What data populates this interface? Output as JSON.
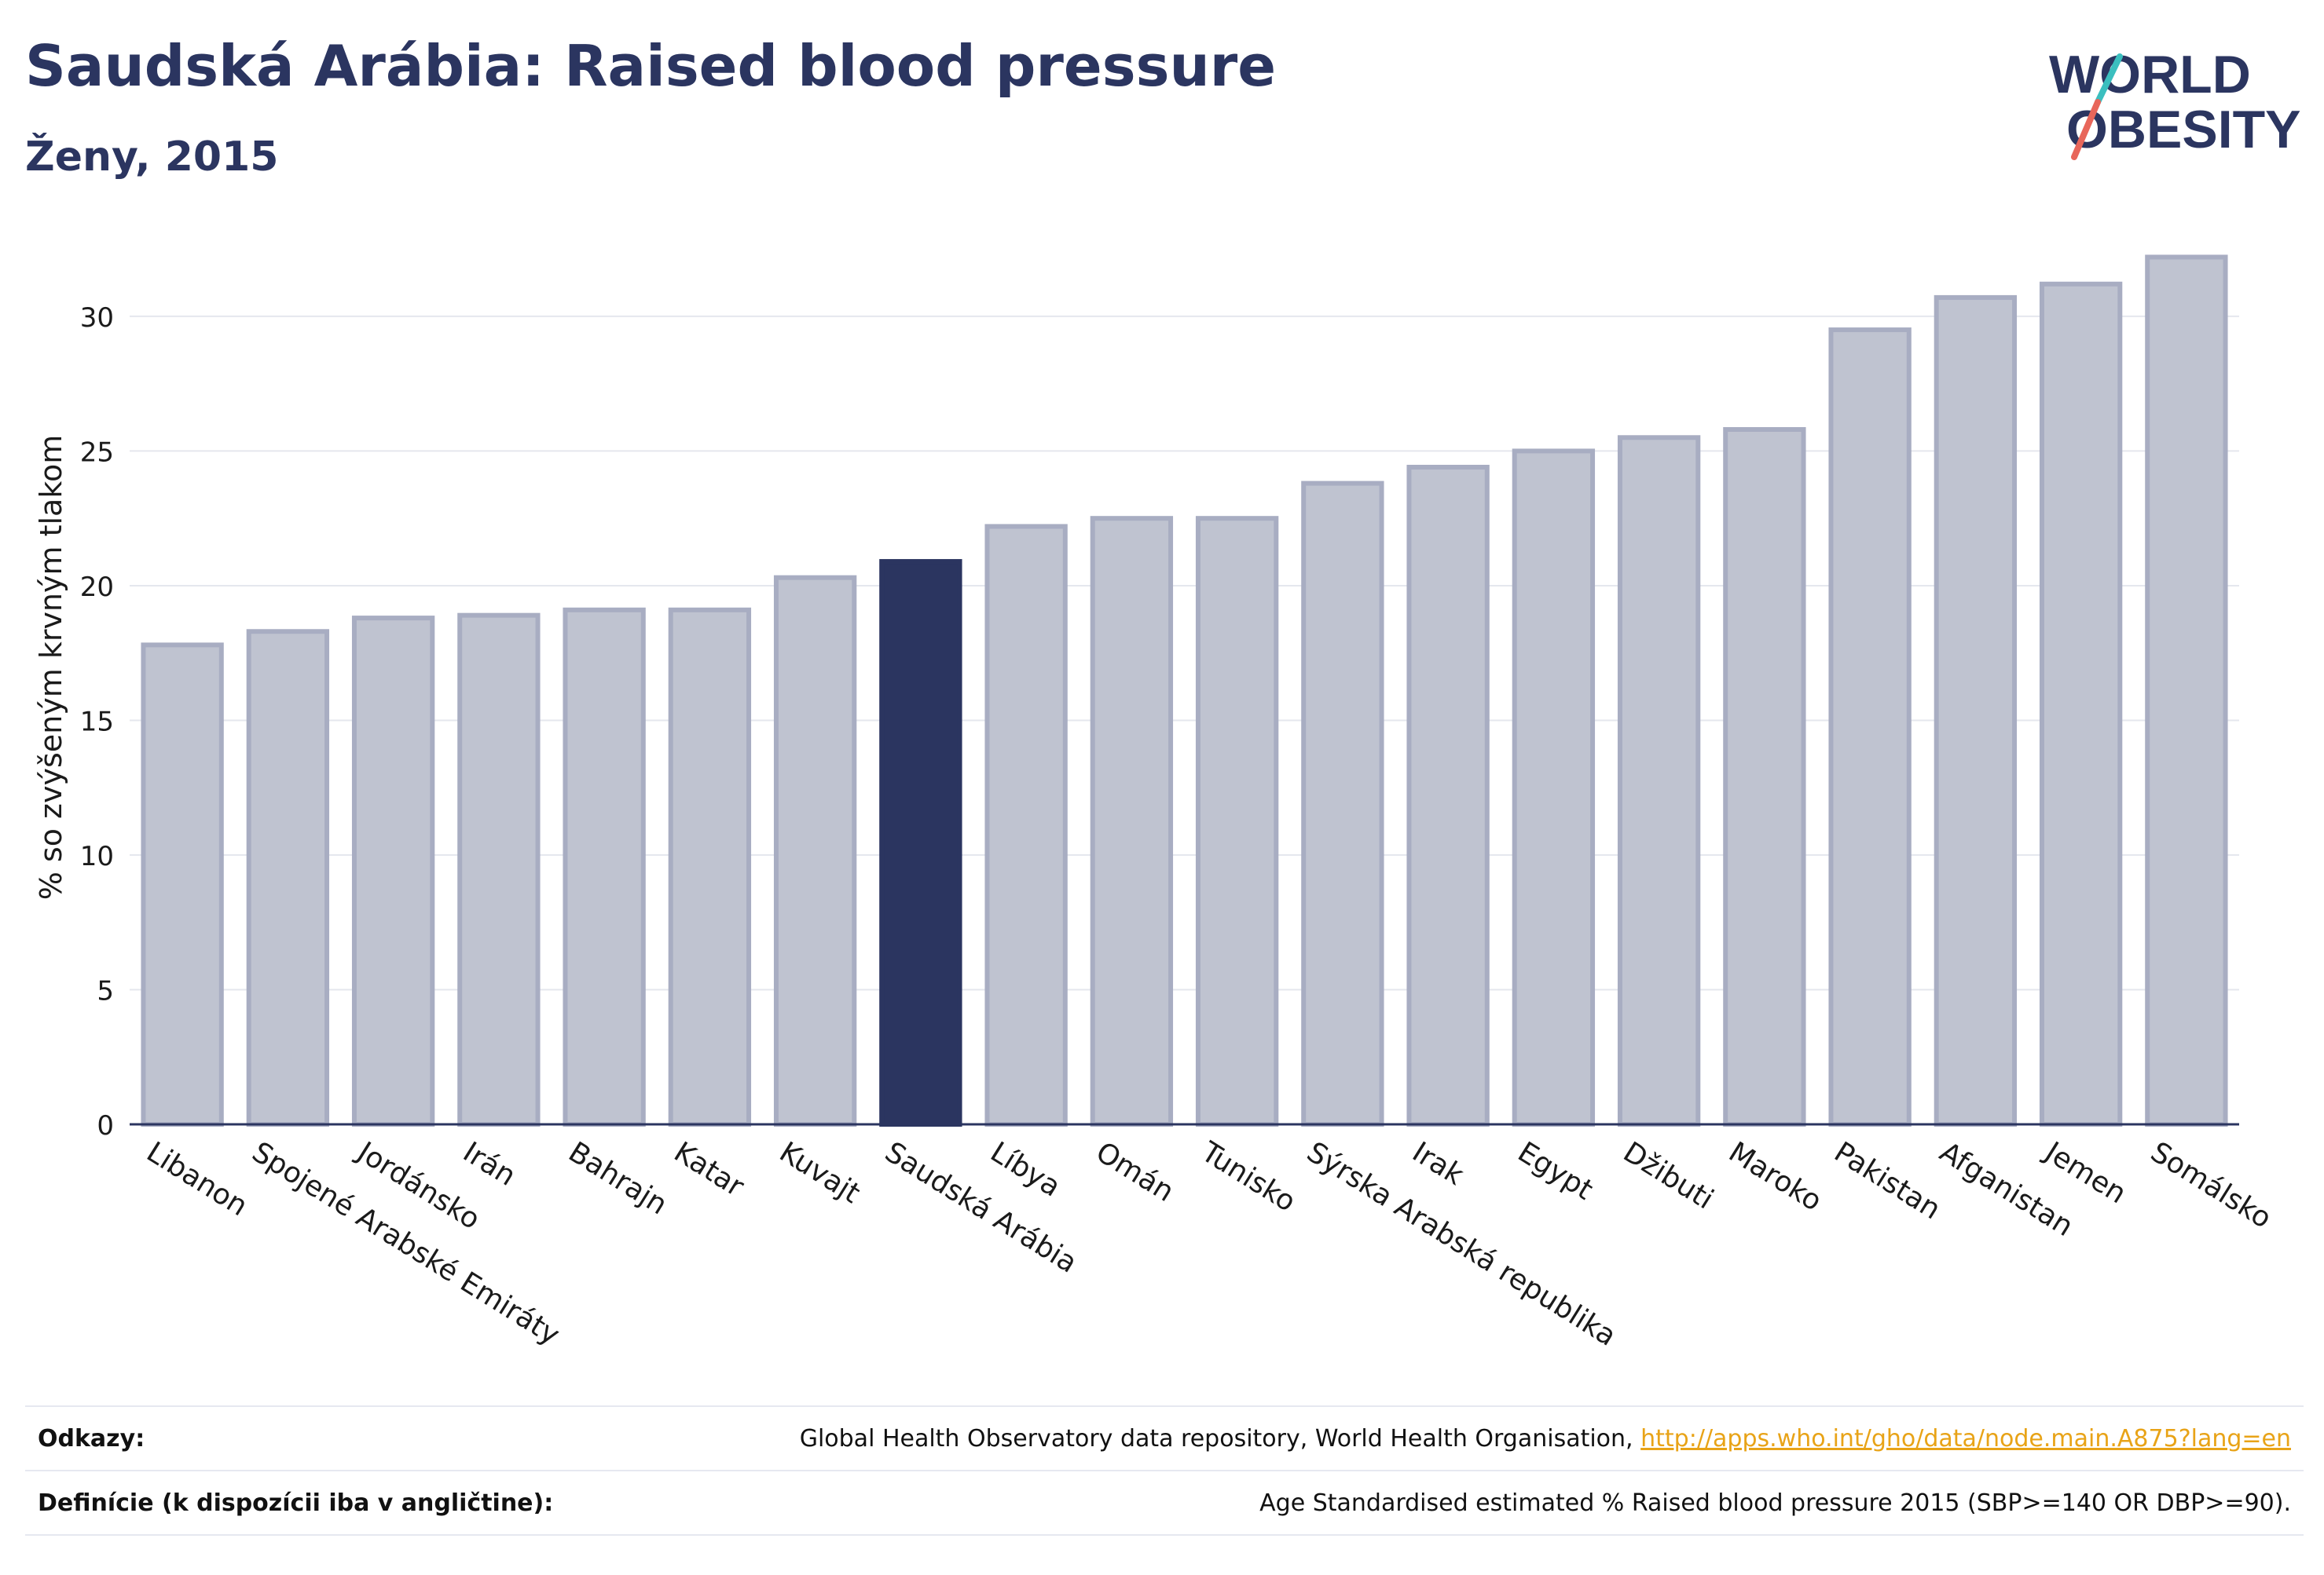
{
  "header": {
    "title": "Saudská Arábia: Raised blood pressure",
    "subtitle": "Ženy, 2015"
  },
  "logo": {
    "line1": "WORLD",
    "line2": "OBESITY",
    "colors": {
      "text": "#2b3560",
      "slash_teal": "#3bbfbf",
      "slash_red": "#e8665a"
    }
  },
  "chart_data": {
    "type": "bar",
    "ylabel": "% so zvýšeným krvným tlakom",
    "xlabel": "",
    "ylim": [
      0,
      33
    ],
    "yticks": [
      0,
      5,
      10,
      15,
      20,
      25,
      30
    ],
    "grid": true,
    "highlight": "Saudská Arábia",
    "colors": {
      "bar": "#bfc3d0",
      "bar_edge": "#a8adc2",
      "highlight": "#2b3560"
    },
    "categories": [
      "Libanon",
      "Spojené Arabské Emiráty",
      "Jordánsko",
      "Irán",
      "Bahrajn",
      "Katar",
      "Kuvajt",
      "Saudská Arábia",
      "Líbya",
      "Omán",
      "Tunisko",
      "Sýrska Arabská republika",
      "Irak",
      "Egypt",
      "Džibuti",
      "Maroko",
      "Pakistan",
      "Afganistan",
      "Jemen",
      "Somálsko"
    ],
    "values": [
      17.8,
      18.3,
      18.8,
      18.9,
      19.1,
      19.1,
      20.3,
      20.9,
      22.2,
      22.5,
      22.5,
      23.8,
      24.4,
      25.0,
      25.5,
      25.8,
      29.5,
      30.7,
      31.2,
      32.2
    ]
  },
  "footer": {
    "sources_label": "Odkazy:",
    "sources_text": "Global Health Observatory data repository, World Health Organisation,",
    "sources_link": "http://apps.who.int/gho/data/node.main.A875?lang=en",
    "definition_label": "Definície (k dispozícii iba v angličtine):",
    "definition_text": "Age Standardised estimated % Raised blood pressure 2015 (SBP>=140 OR DBP>=90)."
  }
}
